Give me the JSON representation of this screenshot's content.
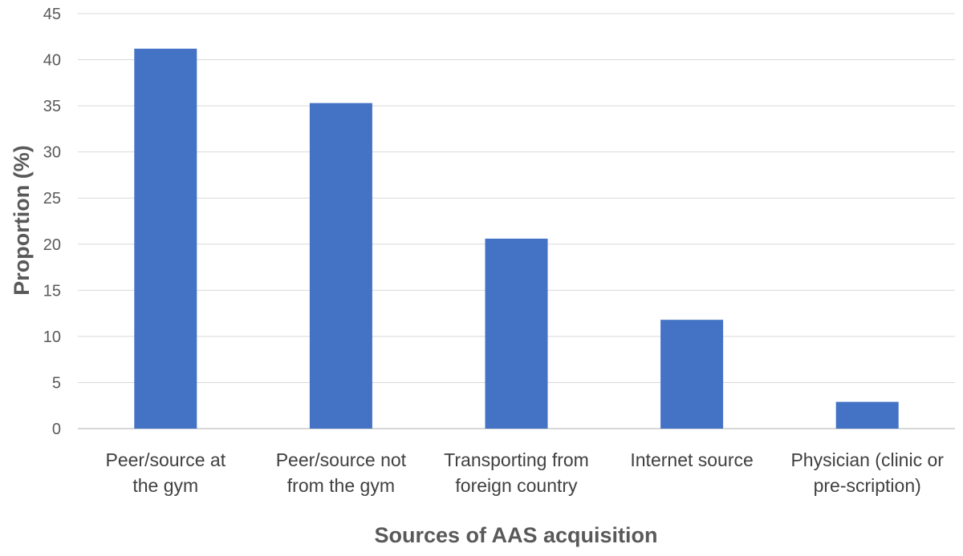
{
  "chart_data": {
    "type": "bar",
    "categories": [
      [
        "Peer/source at",
        "the gym"
      ],
      [
        "Peer/source not",
        "from the gym"
      ],
      [
        "Transporting from",
        "foreign country"
      ],
      [
        "Internet source"
      ],
      [
        "Physician (clinic or",
        "pre-scription)"
      ]
    ],
    "values": [
      41.2,
      35.3,
      20.6,
      11.8,
      2.9
    ],
    "xlabel": "Sources of AAS acquisition",
    "ylabel": "Proportion (%)",
    "ylim": [
      0,
      45
    ],
    "yticks": [
      0,
      5,
      10,
      15,
      20,
      25,
      30,
      35,
      40,
      45
    ],
    "grid": true,
    "legend": "none",
    "bar_color": "#4472c4"
  }
}
